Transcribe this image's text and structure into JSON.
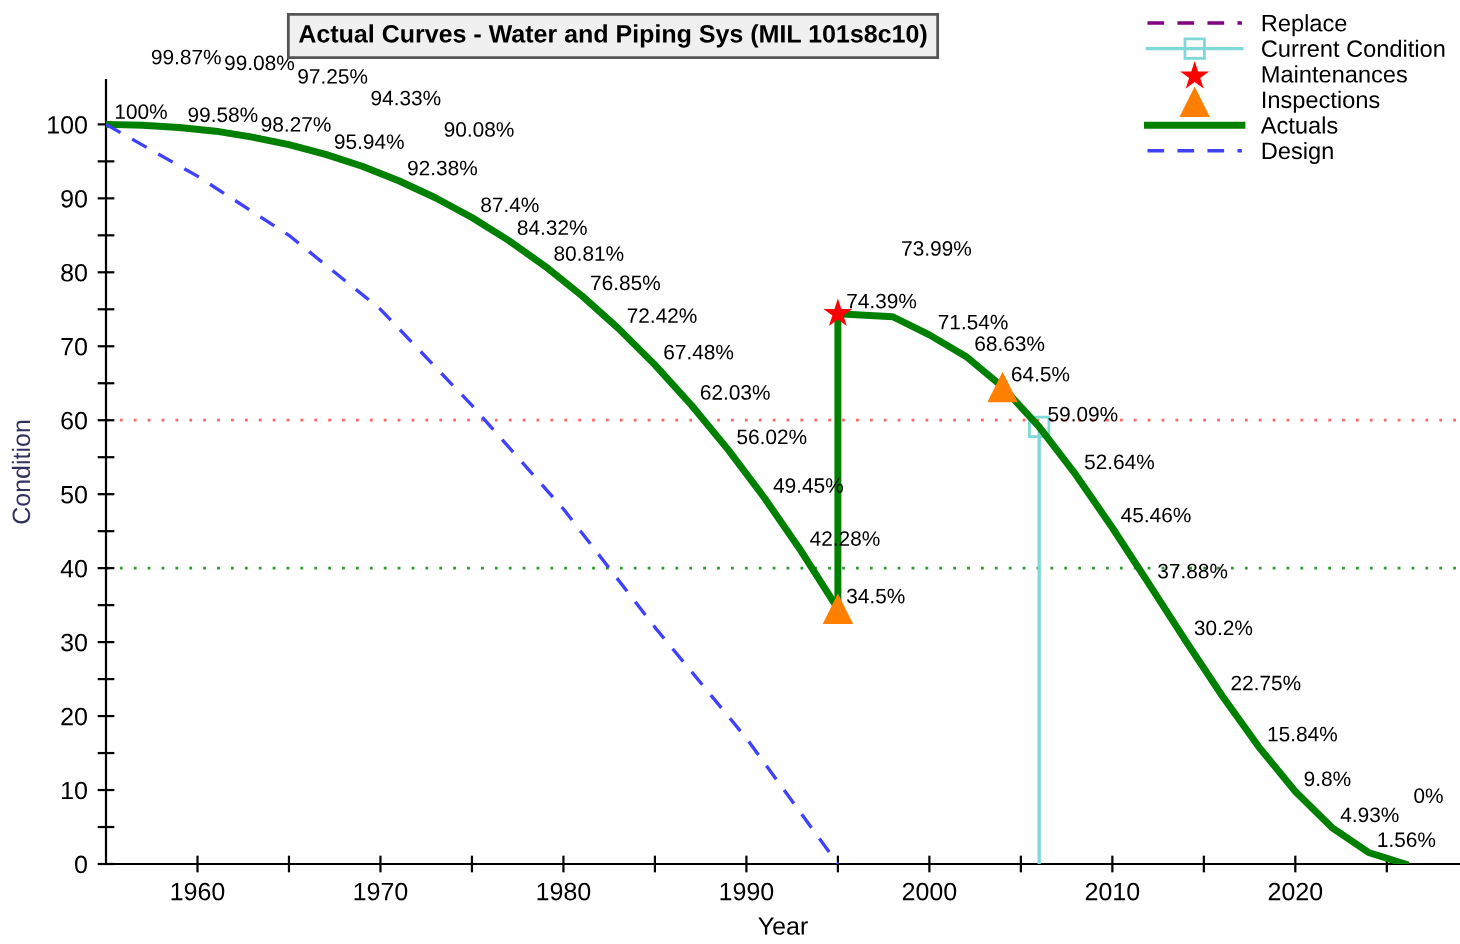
{
  "chart_data": {
    "type": "line",
    "title": "Actual Curves - Water and Piping Sys (MIL 101s8c10)",
    "xlabel": "Year",
    "ylabel": "Condition",
    "xlim": [
      1955,
      2029
    ],
    "ylim": [
      0,
      106
    ],
    "xticks": [
      1960,
      {
        "value": 1965,
        "label": null
      },
      1970,
      {
        "value": 1975,
        "label": null
      },
      1980,
      {
        "value": 1985,
        "label": null
      },
      1990,
      {
        "value": 1995,
        "label": null
      },
      2000,
      {
        "value": 2005,
        "label": null
      },
      2010,
      {
        "value": 2015,
        "label": null
      },
      2020,
      {
        "value": 2025,
        "label": null
      }
    ],
    "yticks": [
      0,
      {
        "value": 5,
        "label": null
      },
      10,
      {
        "value": 15,
        "label": null
      },
      20,
      {
        "value": 25,
        "label": null
      },
      30,
      {
        "value": 35,
        "label": null
      },
      40,
      {
        "value": 45,
        "label": null
      },
      50,
      {
        "value": 55,
        "label": null
      },
      60,
      {
        "value": 65,
        "label": null
      },
      70,
      {
        "value": 75,
        "label": null
      },
      80,
      {
        "value": 85,
        "label": null
      },
      90,
      {
        "value": 95,
        "label": null
      },
      100
    ],
    "grid": false,
    "legend": "top right",
    "ref_lines": [
      {
        "axis": "y",
        "value": 60,
        "color": "#ff6666",
        "line_style": "dotted"
      },
      {
        "axis": "y",
        "value": 40,
        "color": "#339933",
        "line_style": "dotted"
      }
    ],
    "series": [
      {
        "name": "Replace",
        "color": "#800080",
        "line_style": "dashed",
        "marker": "none"
      },
      {
        "name": "Current Condition",
        "color": "#80d8d8",
        "line_style": "solid",
        "marker": "square",
        "x": [
          2006,
          2006
        ],
        "values": [
          0,
          59.09
        ],
        "value_labels": [
          null,
          "59.09%"
        ]
      },
      {
        "name": "Maintenances",
        "type": "scatter",
        "color": "#ff0000",
        "marker": "star",
        "x": [
          1995
        ],
        "values": [
          74.39
        ]
      },
      {
        "name": "Inspections",
        "type": "scatter",
        "color": "#ff8000",
        "marker": "triangle",
        "x": [
          1995,
          2004
        ],
        "values": [
          34.5,
          64.5
        ]
      },
      {
        "name": "Actuals",
        "color": "#008000",
        "line_style": "solid",
        "marker": "none",
        "x": [
          1955,
          1957,
          1959,
          1961,
          1963,
          1965,
          1967,
          1969,
          1971,
          1973,
          1975,
          1977,
          1979,
          1981,
          1983,
          1985,
          1987,
          1989,
          1991,
          1993,
          1995,
          1995,
          1998,
          2000,
          2002,
          2004,
          2006,
          2008,
          2010,
          2012,
          2014,
          2016,
          2018,
          2020,
          2022,
          2024,
          2026
        ],
        "values": [
          100,
          99.87,
          99.58,
          99.08,
          98.27,
          97.25,
          95.94,
          94.33,
          92.38,
          90.08,
          87.4,
          84.32,
          80.81,
          76.85,
          72.42,
          67.48,
          62.03,
          56.02,
          49.45,
          42.28,
          34.5,
          74.39,
          73.99,
          71.54,
          68.63,
          64.5,
          59.09,
          52.64,
          45.46,
          37.88,
          30.2,
          22.75,
          15.84,
          9.8,
          4.93,
          1.56,
          0
        ],
        "value_labels": [
          "100%",
          "99.87%",
          "99.58%",
          "99.08%",
          "98.27%",
          "97.25%",
          "95.94%",
          "94.33%",
          "92.38%",
          "90.08%",
          "87.4%",
          "84.32%",
          "80.81%",
          "76.85%",
          "72.42%",
          "67.48%",
          "62.03%",
          "56.02%",
          "49.45%",
          "42.28%",
          "34.5%",
          "74.39%",
          "73.99%",
          "71.54%",
          "68.63%",
          "64.5%",
          null,
          "52.64%",
          "45.46%",
          "37.88%",
          "30.2%",
          "22.75%",
          "15.84%",
          "9.8%",
          "4.93%",
          "1.56%",
          "0%"
        ]
      },
      {
        "name": "Design",
        "color": "#4040ff",
        "line_style": "dashed",
        "marker": "none",
        "x": [
          1955,
          1960,
          1965,
          1970,
          1975,
          1980,
          1985,
          1990,
          1995
        ],
        "values": [
          100,
          93,
          85,
          75,
          62,
          48,
          32,
          17,
          0
        ]
      }
    ]
  }
}
